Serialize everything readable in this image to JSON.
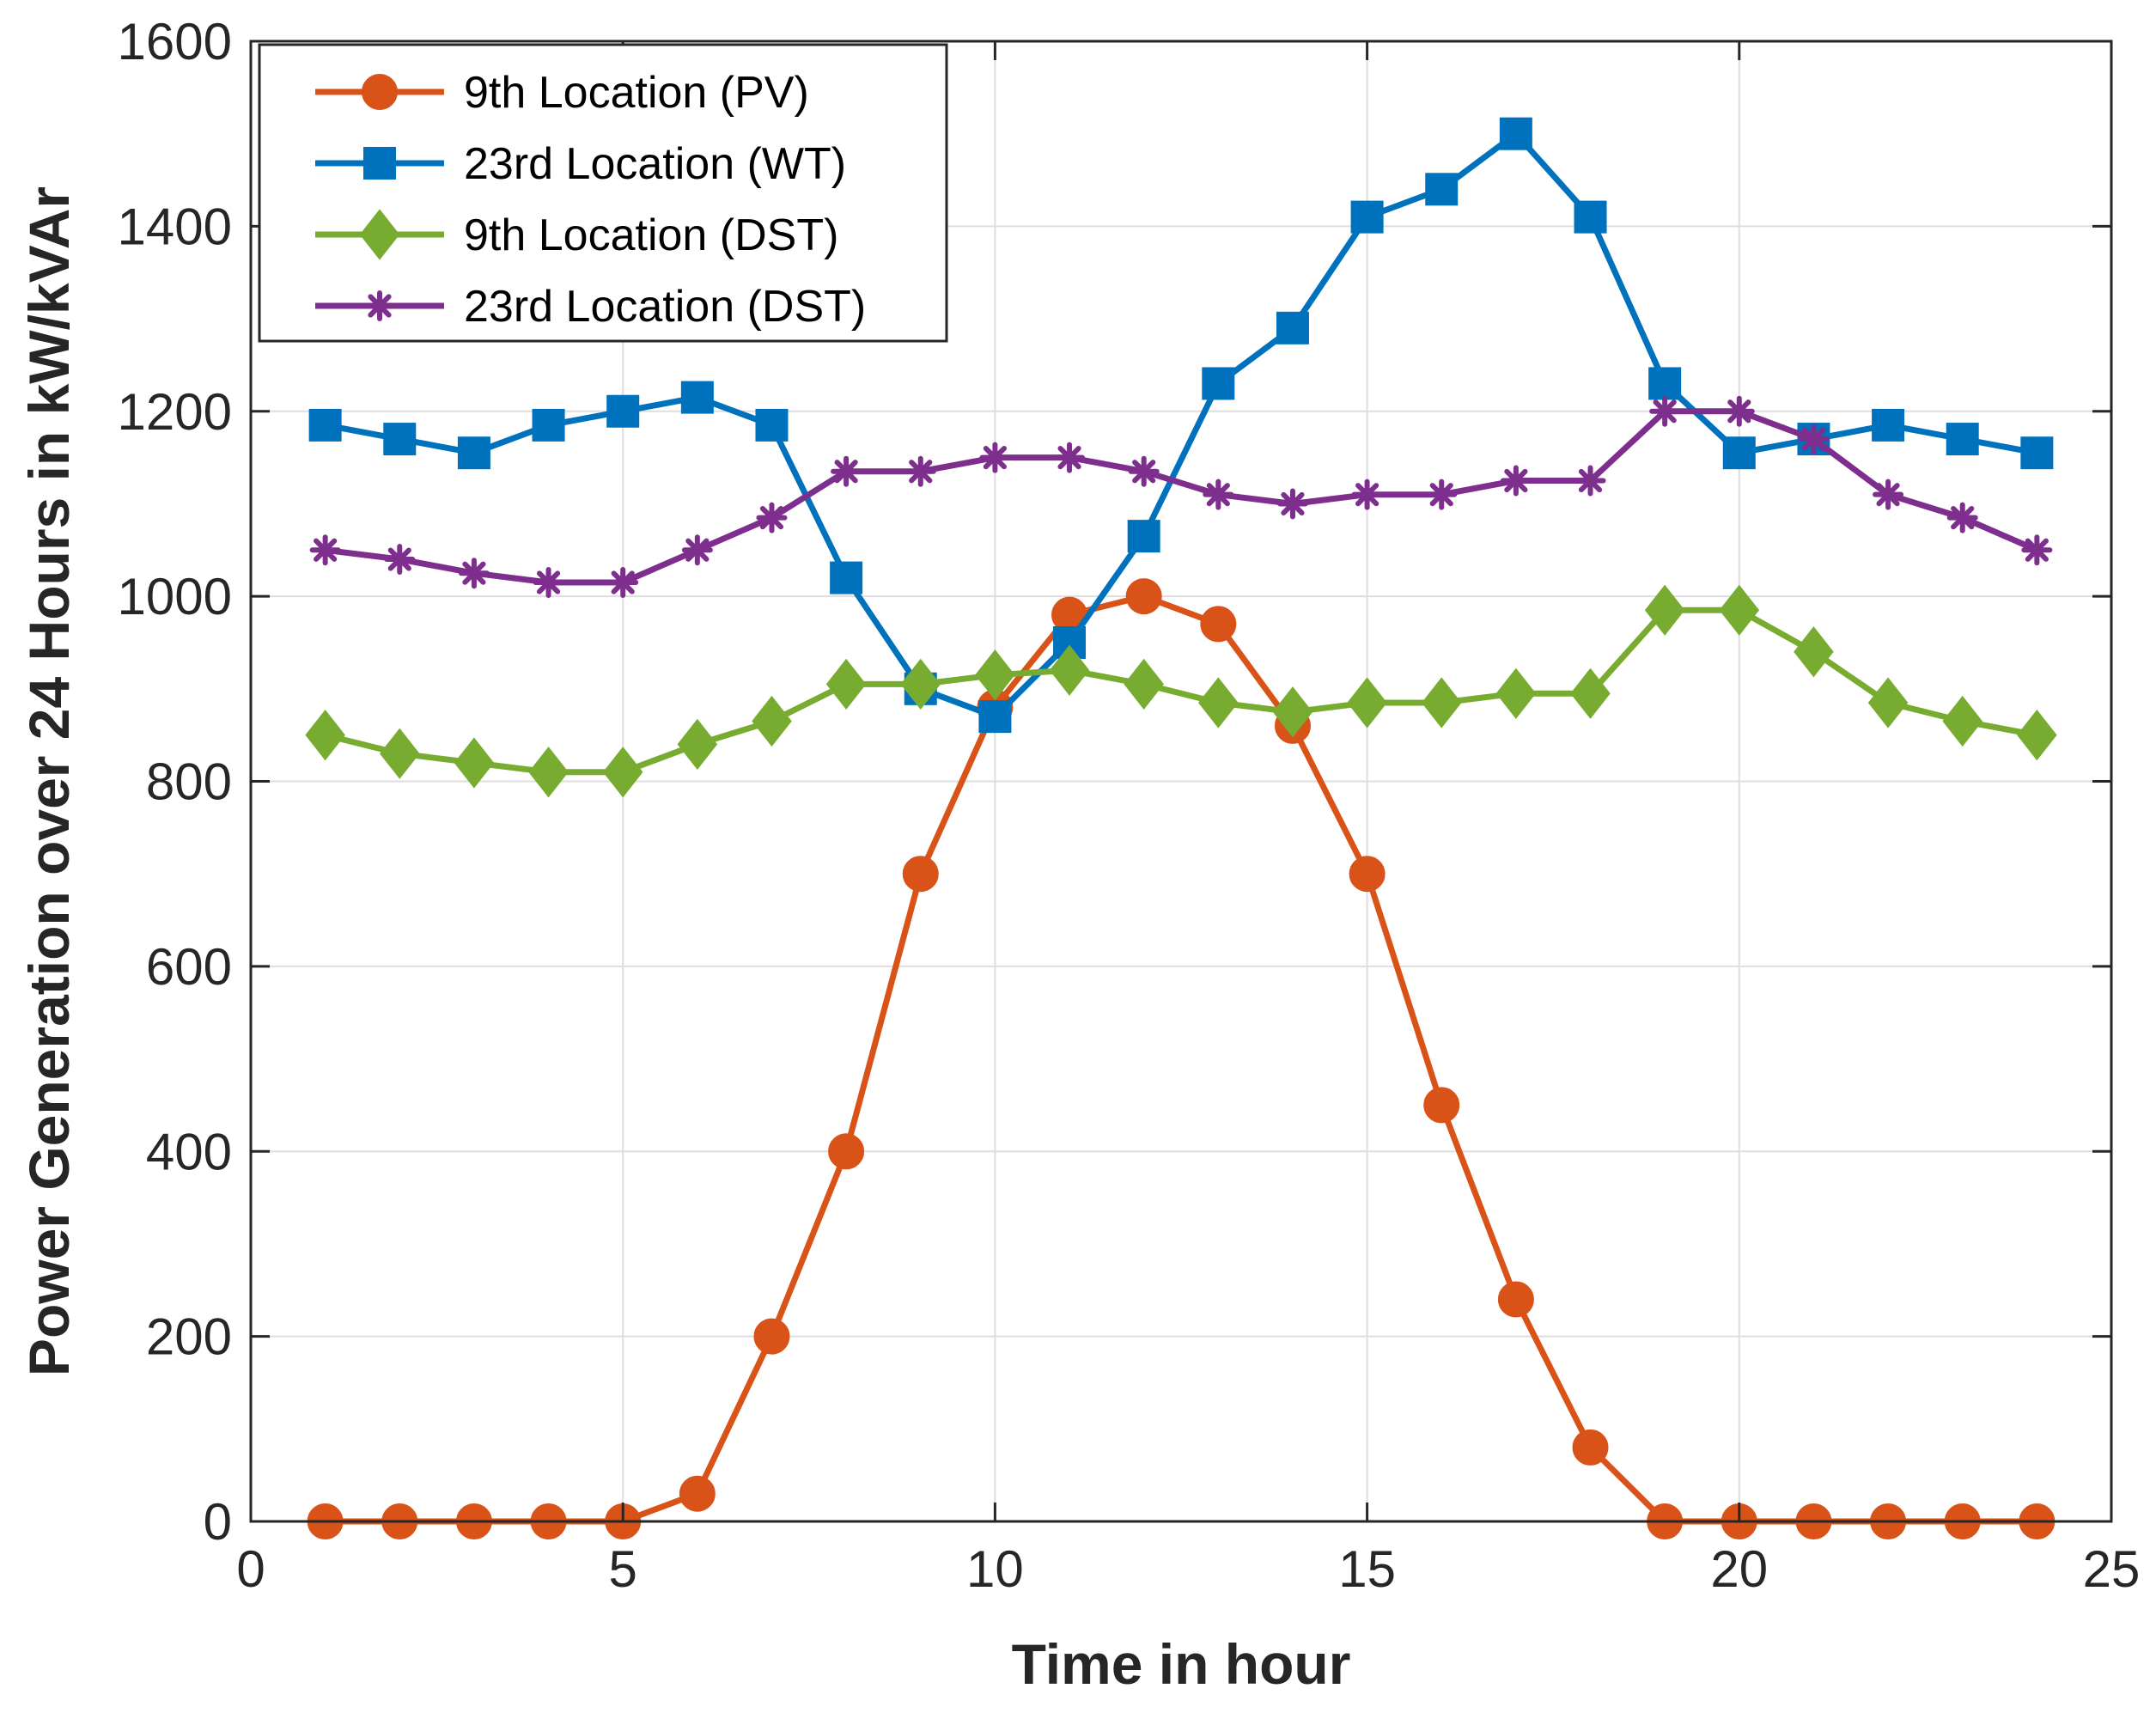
{
  "chart_data": {
    "type": "line",
    "title": "",
    "xlabel": "Time in hour",
    "ylabel": "Power Generation over 24 Hours in kW/kVAr",
    "xlim": [
      0,
      25
    ],
    "ylim": [
      0,
      1600
    ],
    "xticks": [
      0,
      5,
      10,
      15,
      20,
      25
    ],
    "yticks": [
      0,
      200,
      400,
      600,
      800,
      1000,
      1200,
      1400,
      1600
    ],
    "xtick_labels": [
      "0",
      "5",
      "10",
      "15",
      "20",
      "25"
    ],
    "ytick_labels": [
      "0",
      "200",
      "400",
      "600",
      "800",
      "1000",
      "1200",
      "1400",
      "1600"
    ],
    "grid": true,
    "legend_position": "top-left",
    "x": [
      1,
      2,
      3,
      4,
      5,
      6,
      7,
      8,
      9,
      10,
      11,
      12,
      13,
      14,
      15,
      16,
      17,
      18,
      19,
      20,
      21,
      22,
      23,
      24
    ],
    "series": [
      {
        "name": "9th Location (PV)",
        "color": "#D95319",
        "marker": "circle",
        "values": [
          0,
          0,
          0,
          0,
          0,
          30,
          200,
          400,
          700,
          880,
          980,
          1000,
          970,
          860,
          700,
          450,
          240,
          80,
          0,
          0,
          0,
          0,
          0,
          0
        ]
      },
      {
        "name": "23rd Location (WT)",
        "color": "#0072BD",
        "marker": "square",
        "values": [
          1185,
          1170,
          1155,
          1185,
          1200,
          1215,
          1185,
          1020,
          900,
          870,
          950,
          1065,
          1230,
          1290,
          1410,
          1440,
          1500,
          1410,
          1230,
          1155,
          1170,
          1185,
          1170,
          1155
        ]
      },
      {
        "name": "9th Location (DST)",
        "color": "#77AC30",
        "marker": "diamond",
        "values": [
          850,
          830,
          820,
          810,
          810,
          840,
          865,
          905,
          905,
          915,
          920,
          905,
          885,
          875,
          885,
          885,
          895,
          895,
          985,
          985,
          940,
          885,
          865,
          850
        ]
      },
      {
        "name": "23rd Location (DST)",
        "color": "#7E2F8E",
        "marker": "asterisk",
        "values": [
          1050,
          1040,
          1025,
          1015,
          1015,
          1050,
          1085,
          1135,
          1135,
          1150,
          1150,
          1135,
          1110,
          1100,
          1110,
          1110,
          1125,
          1125,
          1200,
          1200,
          1170,
          1110,
          1085,
          1050
        ]
      }
    ]
  }
}
